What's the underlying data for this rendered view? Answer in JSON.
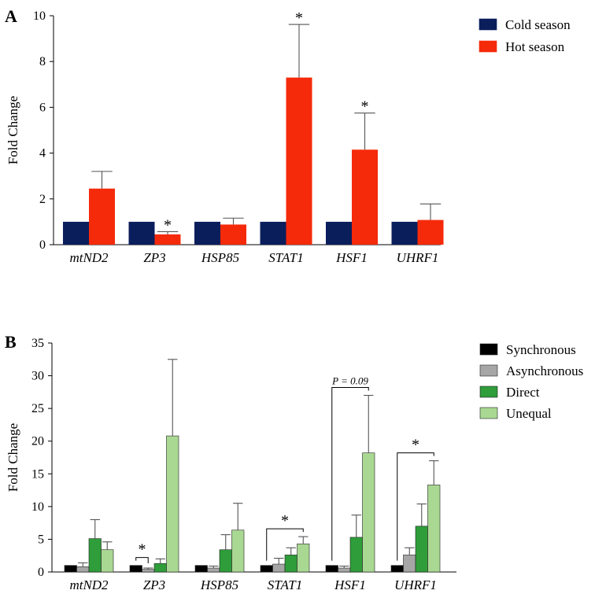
{
  "chart_data": [
    {
      "panel": "A",
      "type": "bar",
      "ylabel": "Fold Change",
      "ylim": [
        0,
        10
      ],
      "yticks": [
        0,
        2,
        4,
        6,
        8,
        10
      ],
      "categories": [
        "mtND2",
        "ZP3",
        "HSP85",
        "STAT1",
        "HSF1",
        "UHRF1"
      ],
      "series": [
        {
          "name": "Cold season",
          "color": "#0b1e5c",
          "values": [
            1,
            1,
            1,
            1,
            1,
            1
          ],
          "errors": [
            0,
            0,
            0,
            0,
            0,
            0
          ]
        },
        {
          "name": "Hot season",
          "color": "#f52a0a",
          "values": [
            2.45,
            0.45,
            0.88,
            7.3,
            4.15,
            1.08
          ],
          "errors": [
            0.75,
            0.12,
            0.28,
            2.32,
            1.6,
            0.7
          ]
        }
      ],
      "annotations": [
        {
          "text": "*",
          "category": "ZP3",
          "series": 1
        },
        {
          "text": "*",
          "category": "STAT1",
          "series": 1
        },
        {
          "text": "*",
          "category": "HSF1",
          "series": 1
        }
      ]
    },
    {
      "panel": "B",
      "type": "bar",
      "ylabel": "Fold Change",
      "ylim": [
        0,
        35
      ],
      "yticks": [
        0,
        5,
        10,
        15,
        20,
        25,
        30,
        35
      ],
      "categories": [
        "mtND2",
        "ZP3",
        "HSP85",
        "STAT1",
        "HSF1",
        "UHRF1"
      ],
      "series": [
        {
          "name": "Synchronous",
          "color": "#000000",
          "values": [
            1,
            1,
            1,
            1,
            1,
            1
          ],
          "errors": [
            0,
            0,
            0,
            0,
            0,
            0
          ]
        },
        {
          "name": "Asynchronous",
          "color": "#a6a6a6",
          "values": [
            0.8,
            0.4,
            0.6,
            1.2,
            0.6,
            2.6
          ],
          "errors": [
            0.6,
            0.2,
            0.3,
            0.9,
            0.3,
            1.1
          ]
        },
        {
          "name": "Direct",
          "color": "#2e9d3a",
          "values": [
            5.1,
            1.3,
            3.4,
            2.6,
            5.3,
            7.0
          ],
          "errors": [
            2.9,
            0.7,
            2.3,
            1.1,
            3.4,
            3.4
          ]
        },
        {
          "name": "Unequal",
          "color": "#a9d893",
          "values": [
            3.4,
            20.8,
            6.4,
            4.3,
            18.2,
            13.3
          ],
          "errors": [
            1.2,
            11.7,
            4.1,
            1.1,
            8.8,
            3.7
          ]
        }
      ],
      "annotations": [
        {
          "text": "*",
          "category": "ZP3",
          "from": 0,
          "to": 1
        },
        {
          "text": "*",
          "category": "STAT1",
          "from": 0,
          "to": 3
        },
        {
          "text": "P = 0.09",
          "category": "HSF1",
          "from": 0,
          "to": 3
        },
        {
          "text": "*",
          "category": "UHRF1",
          "from": 0,
          "to": 3
        }
      ]
    }
  ]
}
